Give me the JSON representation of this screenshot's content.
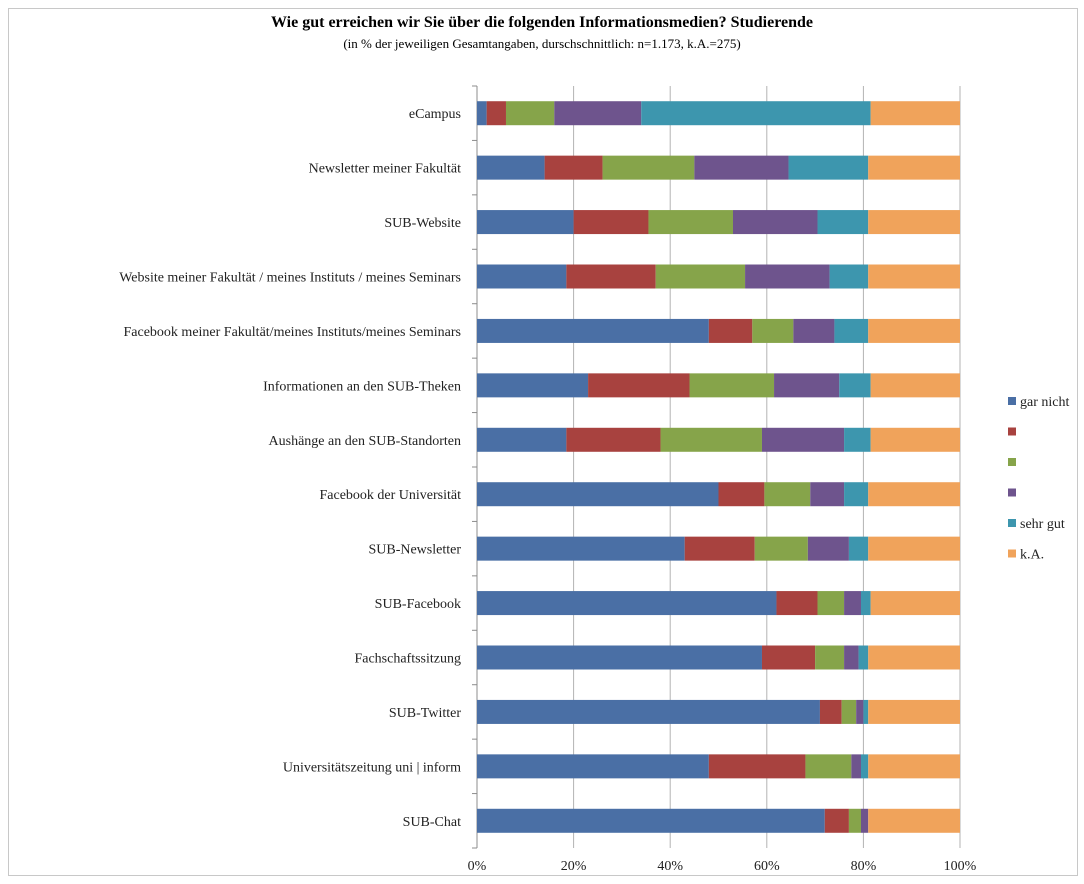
{
  "chart_data": {
    "type": "bar",
    "orientation": "horizontal",
    "stacked": "percent",
    "title": "Wie gut erreichen wir Sie über die folgenden Informationsmedien? Studierende",
    "subtitle": "(in % der jeweiligen Gesamtangaben, durschschnittlich: n=1.173, k.A.=275)",
    "categories": [
      "eCampus",
      "Newsletter meiner Fakultät",
      "SUB-Website",
      "Website meiner Fakultät / meines Instituts / meines Seminars",
      "Facebook meiner Fakultät/meines Instituts/meines Seminars",
      "Informationen an den SUB-Theken",
      "Aushänge an den SUB-Standorten",
      "Facebook der Universität",
      "SUB-Newsletter",
      "SUB-Facebook",
      "Fachschaftssitzung",
      "SUB-Twitter",
      "Universitätszeitung uni | inform",
      "SUB-Chat"
    ],
    "series": [
      {
        "name": "gar nicht",
        "color": "#4a6fa5",
        "values": [
          2,
          14,
          20,
          18.5,
          48,
          23,
          18.5,
          50,
          43,
          62,
          59,
          71,
          48,
          72
        ]
      },
      {
        "name": "",
        "color": "#a8423f",
        "values": [
          4,
          12,
          15.5,
          18.5,
          9,
          21,
          19.5,
          9.5,
          14.5,
          8.5,
          11,
          4.5,
          20,
          5
        ]
      },
      {
        "name": "",
        "color": "#86a44a",
        "values": [
          10,
          19,
          17.5,
          18.5,
          8.5,
          17.5,
          21,
          9.5,
          11,
          5.5,
          6,
          3,
          9.5,
          2.5
        ]
      },
      {
        "name": "",
        "color": "#6e548d",
        "values": [
          18,
          19.5,
          17.5,
          17.5,
          8.5,
          13.5,
          17,
          7,
          8.5,
          3.5,
          3,
          1.5,
          2,
          1.5
        ]
      },
      {
        "name": "sehr gut",
        "color": "#3d96ae",
        "values": [
          47.5,
          16.5,
          10.5,
          8,
          7,
          6.5,
          5.5,
          5,
          4,
          2,
          2,
          1,
          1.5,
          0
        ]
      },
      {
        "name": "k.A.",
        "color": "#f0a35b",
        "values": [
          18.5,
          19,
          19,
          19,
          19,
          18.5,
          18.5,
          19,
          19,
          18.5,
          19,
          19,
          19,
          19
        ]
      }
    ],
    "xlim": [
      0,
      100
    ],
    "x_ticks": [
      "0%",
      "20%",
      "40%",
      "60%",
      "80%",
      "100%"
    ],
    "grid": "vertical",
    "legend_position": "right"
  }
}
